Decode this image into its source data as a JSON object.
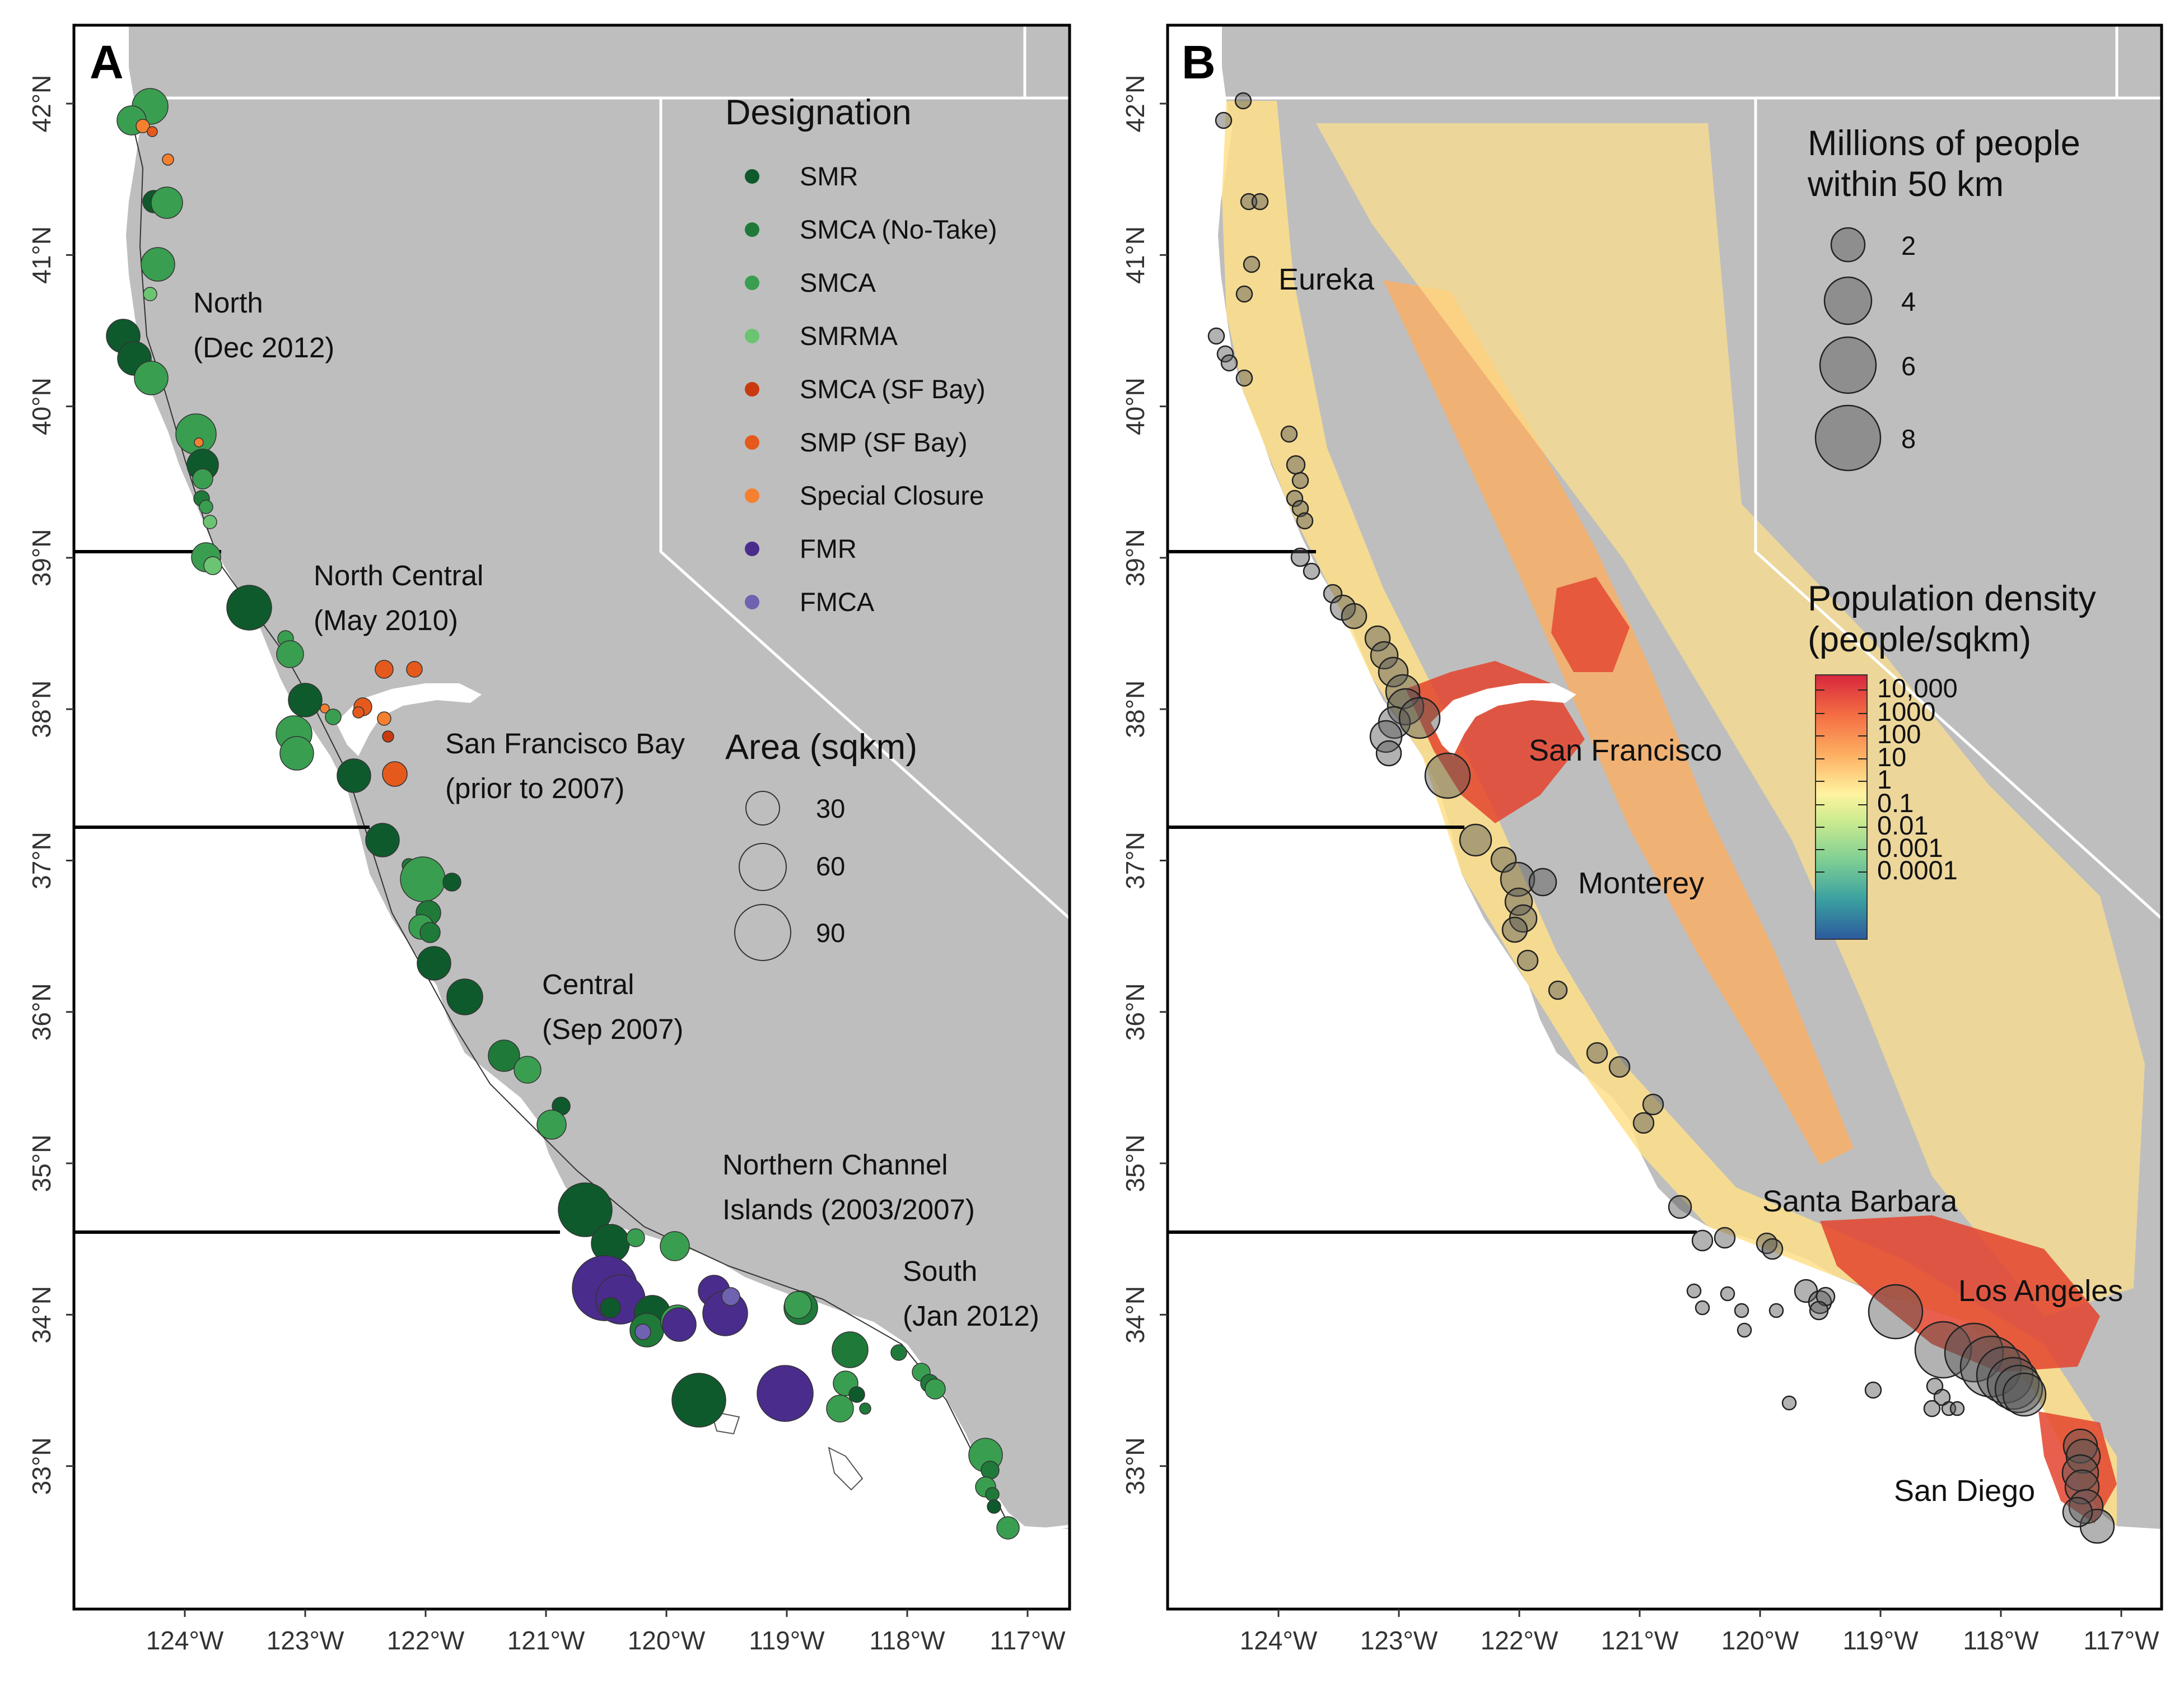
{
  "panel_a": {
    "letter": "A",
    "regions": [
      {
        "name": "North",
        "date": "(Dec 2012)"
      },
      {
        "name": "North Central",
        "date": "(May 2010)"
      },
      {
        "name": "San Francisco Bay",
        "date": "(prior to 2007)"
      },
      {
        "name": "Central",
        "date": "(Sep 2007)"
      },
      {
        "name": "Northern Channel",
        "date": "Islands (2003/2007)"
      },
      {
        "name": "South",
        "date": "(Jan 2012)"
      }
    ],
    "designation_legend": {
      "title": "Designation",
      "items": [
        {
          "label": "SMR",
          "color": "#0f5a2c"
        },
        {
          "label": "SMCA (No-Take)",
          "color": "#1f7a3a"
        },
        {
          "label": "SMCA",
          "color": "#3a9e50"
        },
        {
          "label": "SMRMA",
          "color": "#6bc472"
        },
        {
          "label": "SMCA (SF Bay)",
          "color": "#c93a10"
        },
        {
          "label": "SMP (SF Bay)",
          "color": "#e55a1c"
        },
        {
          "label": "Special Closure",
          "color": "#f48030"
        },
        {
          "label": "FMR",
          "color": "#4a2c8c"
        },
        {
          "label": "FMCA",
          "color": "#6f62b0"
        }
      ]
    },
    "area_legend": {
      "title": "Area (sqkm)",
      "items": [
        "30",
        "60",
        "90"
      ]
    }
  },
  "panel_b": {
    "letter": "B",
    "cities": [
      "Eureka",
      "San Francisco",
      "Monterey",
      "Santa Barbara",
      "Los Angeles",
      "San Diego"
    ],
    "people_legend": {
      "title_line1": "Millions of people",
      "title_line2": "within 50 km",
      "items": [
        "2",
        "4",
        "6",
        "8"
      ]
    },
    "density_legend": {
      "title_line1": "Population density",
      "title_line2": "(people/sqkm)",
      "labels": [
        "10,000",
        "1000",
        "100",
        "10",
        "1",
        "0.1",
        "0.01",
        "0.001",
        "0.0001"
      ]
    }
  },
  "axes": {
    "y_ticks": [
      "42°N",
      "41°N",
      "40°N",
      "39°N",
      "38°N",
      "37°N",
      "36°N",
      "35°N",
      "34°N",
      "33°N"
    ],
    "x_ticks": [
      "124°W",
      "123°W",
      "122°W",
      "121°W",
      "120°W",
      "119°W",
      "118°W",
      "117°W"
    ]
  },
  "colors": {
    "land": "#bebebe",
    "ocean": "#ffffff",
    "border": "#ffffff",
    "density_high": "#d7301f",
    "density_mid": "#fdae61",
    "density_low": "#ffe08a"
  }
}
